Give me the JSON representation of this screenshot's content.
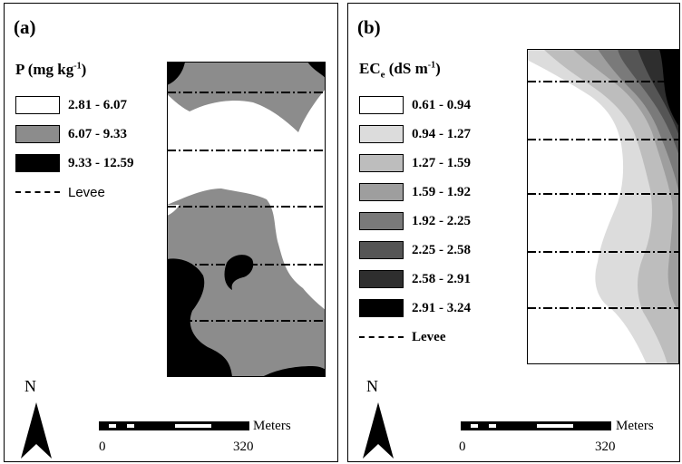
{
  "panels": [
    {
      "label": "(a)",
      "legend_title": "P (mg kg",
      "legend_title_sup": "-1",
      "legend_title_close": ")",
      "classes": [
        {
          "range": "2.81 - 6.07",
          "color": "#ffffff"
        },
        {
          "range": "6.07 - 9.33",
          "color": "#8c8c8c"
        },
        {
          "range": "9.33 - 12.59",
          "color": "#000000"
        }
      ],
      "levee_label": "Levee",
      "north": "N",
      "scale": {
        "units": "Meters",
        "start": "0",
        "end": "320"
      }
    },
    {
      "label": "(b)",
      "legend_title": "EC",
      "legend_title_sub": "e",
      "legend_title_mid": " (dS m",
      "legend_title_sup": "-1",
      "legend_title_close": ")",
      "classes": [
        {
          "range": "0.61 - 0.94",
          "color": "#ffffff"
        },
        {
          "range": "0.94 - 1.27",
          "color": "#dcdcdc"
        },
        {
          "range": "1.27 - 1.59",
          "color": "#bdbdbd"
        },
        {
          "range": "1.59 - 1.92",
          "color": "#9e9e9e"
        },
        {
          "range": "1.92 - 2.25",
          "color": "#7a7a7a"
        },
        {
          "range": "2.25 - 2.58",
          "color": "#555555"
        },
        {
          "range": "2.58 - 2.91",
          "color": "#2e2e2e"
        },
        {
          "range": "2.91 - 3.24",
          "color": "#000000"
        }
      ],
      "levee_label": "Levee",
      "north": "N",
      "scale": {
        "units": "Meters",
        "start": "0",
        "end": "320"
      }
    }
  ]
}
